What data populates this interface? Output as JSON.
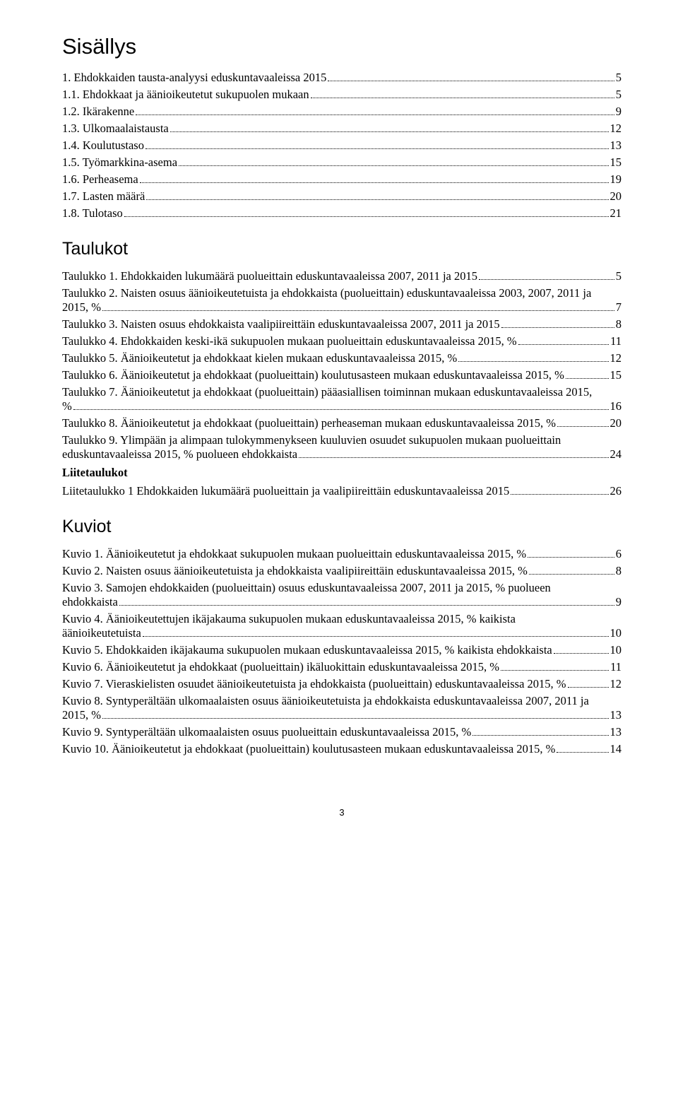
{
  "titles": {
    "sisallys": "Sisällys",
    "taulukot": "Taulukot",
    "kuviot": "Kuviot",
    "liitetaulukot": "Liitetaulukot"
  },
  "sisallys": [
    {
      "label": "1. Ehdokkaiden tausta-analyysi eduskuntavaaleissa 2015",
      "page": "5"
    },
    {
      "label": "1.1. Ehdokkaat ja äänioikeutetut sukupuolen mukaan",
      "page": "5"
    },
    {
      "label": "1.2. Ikärakenne",
      "page": "9"
    },
    {
      "label": "1.3. Ulkomaalaistausta",
      "page": "12"
    },
    {
      "label": "1.4. Koulutustaso",
      "page": "13"
    },
    {
      "label": "1.5. Työmarkkina-asema",
      "page": "15"
    },
    {
      "label": "1.6. Perheasema",
      "page": "19"
    },
    {
      "label": "1.7. Lasten määrä",
      "page": "20"
    },
    {
      "label": "1.8. Tulotaso",
      "page": "21"
    }
  ],
  "taulukot": [
    {
      "type": "single",
      "label": "Taulukko 1. Ehdokkaiden lukumäärä puolueittain eduskuntavaaleissa 2007, 2011 ja 2015",
      "page": "5"
    },
    {
      "type": "multi",
      "first": "Taulukko 2. Naisten osuus äänioikeutetuista ja ehdokkaista (puolueittain) eduskuntavaaleissa 2003, 2007, 2011 ja",
      "second": "2015, %",
      "page": "7"
    },
    {
      "type": "single",
      "label": "Taulukko 3. Naisten osuus ehdokkaista vaalipiireittäin eduskuntavaaleissa 2007, 2011 ja 2015",
      "page": "8"
    },
    {
      "type": "single",
      "label": "Taulukko 4. Ehdokkaiden keski-ikä sukupuolen mukaan puolueittain eduskuntavaaleissa 2015, %",
      "page": "11"
    },
    {
      "type": "single",
      "label": "Taulukko 5. Äänioikeutetut ja ehdokkaat kielen mukaan eduskuntavaaleissa 2015, %",
      "page": "12"
    },
    {
      "type": "single",
      "label": "Taulukko 6. Äänioikeutetut ja ehdokkaat (puolueittain) koulutusasteen mukaan eduskuntavaaleissa 2015, %",
      "page": "15"
    },
    {
      "type": "multi",
      "first": "Taulukko 7. Äänioikeutetut ja ehdokkaat (puolueittain) pääasiallisen toiminnan mukaan eduskuntavaaleissa 2015,",
      "second": "%",
      "page": "16"
    },
    {
      "type": "single",
      "label": "Taulukko 8. Äänioikeutetut ja ehdokkaat (puolueittain) perheaseman mukaan eduskuntavaaleissa 2015, %",
      "page": "20"
    },
    {
      "type": "multi",
      "first": "Taulukko 9. Ylimpään ja alimpaan tulokymmenykseen kuuluvien osuudet sukupuolen mukaan puolueittain",
      "second": "eduskuntavaaleissa 2015, % puolueen ehdokkaista",
      "page": "24"
    }
  ],
  "liitetaulukot": [
    {
      "label": "Liitetaulukko 1 Ehdokkaiden lukumäärä puolueittain ja vaalipiireittäin eduskuntavaaleissa 2015",
      "page": "26"
    }
  ],
  "kuviot": [
    {
      "type": "single",
      "label": "Kuvio 1. Äänioikeutetut ja ehdokkaat sukupuolen mukaan puolueittain eduskuntavaaleissa 2015, %",
      "page": "6"
    },
    {
      "type": "single",
      "label": "Kuvio 2. Naisten osuus äänioikeutetuista ja ehdokkaista vaalipiireittäin eduskuntavaaleissa 2015, %",
      "page": "8"
    },
    {
      "type": "multi",
      "first": "Kuvio 3. Samojen ehdokkaiden (puolueittain) osuus eduskuntavaaleissa 2007, 2011 ja 2015, % puolueen",
      "second": "ehdokkaista",
      "page": "9"
    },
    {
      "type": "multi",
      "first": "Kuvio 4. Äänioikeutettujen ikäjakauma sukupuolen mukaan eduskuntavaaleissa 2015, % kaikista",
      "second": "äänioikeutetuista",
      "page": "10"
    },
    {
      "type": "single",
      "label": "Kuvio 5. Ehdokkaiden ikäjakauma sukupuolen mukaan eduskuntavaaleissa 2015, % kaikista ehdokkaista",
      "page": "10"
    },
    {
      "type": "single",
      "label": "Kuvio 6. Äänioikeutetut ja ehdokkaat (puolueittain) ikäluokittain eduskuntavaaleissa 2015, %",
      "page": "11"
    },
    {
      "type": "single",
      "label": "Kuvio 7. Vieraskielisten osuudet äänioikeutetuista ja ehdokkaista (puolueittain) eduskuntavaaleissa 2015, %",
      "page": "12"
    },
    {
      "type": "multi",
      "first": "Kuvio 8. Syntyperältään ulkomaalaisten osuus äänioikeutetuista ja ehdokkaista eduskuntavaaleissa 2007, 2011 ja",
      "second": "2015, %",
      "page": "13"
    },
    {
      "type": "single",
      "label": "Kuvio 9. Syntyperältään ulkomaalaisten osuus puolueittain eduskuntavaaleissa 2015, %",
      "page": "13"
    },
    {
      "type": "single",
      "label": "Kuvio 10. Äänioikeutetut ja ehdokkaat (puolueittain) koulutusasteen mukaan eduskuntavaaleissa 2015, %",
      "page": "14"
    }
  ],
  "page_number": "3"
}
